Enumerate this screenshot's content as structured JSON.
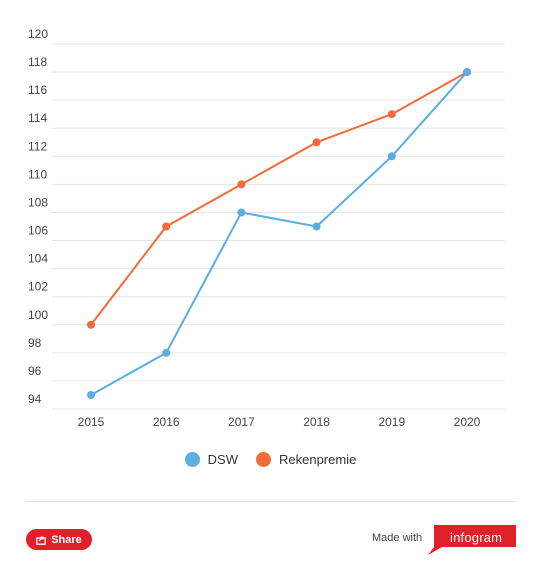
{
  "chart_data": {
    "type": "line",
    "x": [
      "2015",
      "2016",
      "2017",
      "2018",
      "2019",
      "2020"
    ],
    "series": [
      {
        "name": "DSW",
        "color": "#5aaee0",
        "values": [
          95,
          98,
          108,
          107,
          112,
          118
        ]
      },
      {
        "name": "Rekenpremie",
        "color": "#f26b3a",
        "values": [
          100,
          107,
          110,
          113,
          115,
          118
        ]
      }
    ],
    "ylim": [
      94,
      120
    ],
    "yticks": [
      "94",
      "96",
      "98",
      "100",
      "102",
      "104",
      "106",
      "108",
      "110",
      "112",
      "114",
      "116",
      "118",
      "120"
    ],
    "grid": true,
    "legend_position": "bottom"
  },
  "legend": {
    "items": [
      {
        "label": "DSW",
        "color": "#5aaee0"
      },
      {
        "label": "Rekenpremie",
        "color": "#f26b3a"
      }
    ]
  },
  "footer": {
    "share_label": "Share",
    "made_with": "Made with",
    "brand": "infogram",
    "brand_color": "#e2202a"
  }
}
